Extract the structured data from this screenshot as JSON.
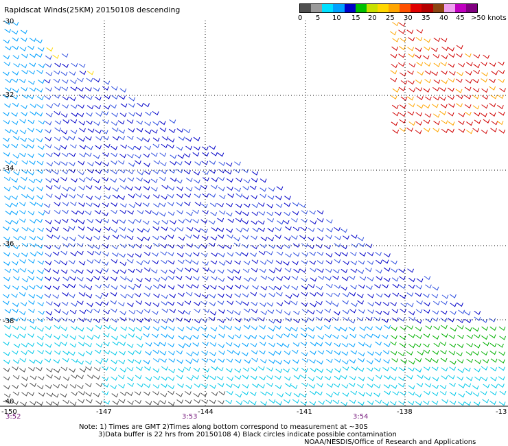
{
  "title": "Rapidscat Winds(25KM) 20150108 descending",
  "legend": {
    "colors": [
      "#505050",
      "#9a9a9a",
      "#00e0ff",
      "#00a0ff",
      "#0000c8",
      "#00c000",
      "#c8e000",
      "#ffd700",
      "#ffa500",
      "#ff5000",
      "#e00000",
      "#b40000",
      "#8b4513",
      "#f0a0f0",
      "#c000c0",
      "#800080"
    ],
    "labels": [
      "0",
      "5",
      "10",
      "15",
      "20",
      "25",
      "30",
      "35",
      "40",
      "45",
      ">50 knots"
    ]
  },
  "lat_labels": [
    "-30",
    "-32",
    "-34",
    "-36",
    "-38",
    "-40"
  ],
  "lon_labels": [
    "-150",
    "-147",
    "-144",
    "-141",
    "-138",
    "-13"
  ],
  "time_labels": [
    "3:52",
    "3:53",
    "3:54"
  ],
  "notes": {
    "line1": "Note: 1) Times are GMT 2)Times along bottom correspond to measurement at ~30S",
    "line2": "3)Data buffer is 22 hrs from 20150108 4) Black circles indicate possible contamination"
  },
  "credit": "NOAA/NESDIS/Office of Research and Applications"
}
